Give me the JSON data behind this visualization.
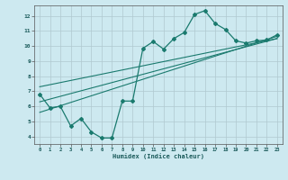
{
  "bg_color": "#cde9f0",
  "grid_color": "#b0c8cf",
  "line_color": "#1a7a6e",
  "marker_color": "#1a7a6e",
  "xlabel": "Humidex (Indice chaleur)",
  "xlim": [
    -0.5,
    23.5
  ],
  "ylim": [
    3.5,
    12.7
  ],
  "xticks": [
    0,
    1,
    2,
    3,
    4,
    5,
    6,
    7,
    8,
    9,
    10,
    11,
    12,
    13,
    14,
    15,
    16,
    17,
    18,
    19,
    20,
    21,
    22,
    23
  ],
  "yticks": [
    4,
    5,
    6,
    7,
    8,
    9,
    10,
    11,
    12
  ],
  "curve1_x": [
    0,
    1,
    2,
    3,
    4,
    5,
    6,
    7,
    8,
    9,
    10,
    11,
    12,
    13,
    14,
    15,
    16,
    17,
    18,
    19,
    20,
    21,
    22,
    23
  ],
  "curve1_y": [
    6.8,
    5.9,
    6.0,
    4.7,
    5.2,
    4.3,
    3.9,
    3.9,
    6.35,
    6.35,
    9.85,
    10.3,
    9.8,
    10.5,
    10.9,
    12.1,
    12.35,
    11.5,
    11.1,
    10.35,
    10.2,
    10.35,
    10.4,
    10.75
  ],
  "line1_x": [
    0,
    23
  ],
  "line1_y": [
    6.3,
    10.5
  ],
  "line2_x": [
    0,
    23
  ],
  "line2_y": [
    7.3,
    10.5
  ],
  "line3_x": [
    0,
    23
  ],
  "line3_y": [
    5.6,
    10.65
  ]
}
